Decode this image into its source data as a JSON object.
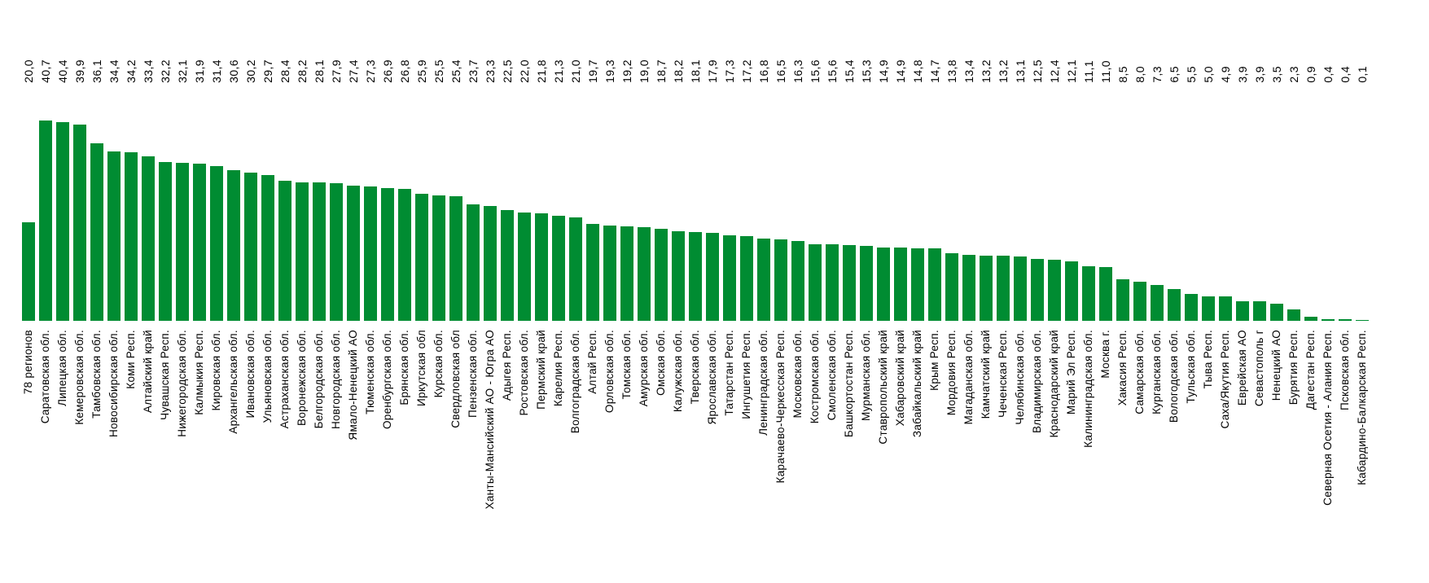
{
  "chart_data": {
    "type": "bar",
    "title": "",
    "xlabel": "",
    "ylabel": "",
    "ylim": [
      0,
      40.7
    ],
    "grid": false,
    "legend": false,
    "bar_color": "#008C32",
    "text_color": "#000000",
    "background_color": "#FFFFFF",
    "value_label_position": "top-row-rotated-90",
    "category_label_rotation": 90,
    "categories": [
      "78 регионов",
      "Саратовская обл.",
      "Липецкая обл.",
      "Кемеровская обл.",
      "Тамбовская обл.",
      "Новосибирская обл.",
      "Коми Респ.",
      "Алтайский край",
      "Чувашская Респ.",
      "Нижегородская обл.",
      "Калмыкия Респ.",
      "Кировская обл.",
      "Архангельская обл.",
      "Ивановская обл.",
      "Ульяновская обл.",
      "Астраханская обл.",
      "Воронежская обл.",
      "Белгородская обл.",
      "Новгородская обл.",
      "Ямало-Ненецкий АО",
      "Тюменская обл.",
      "Оренбургская обл.",
      "Брянская обл.",
      "Иркутская обл",
      "Курская обл.",
      "Свердловская обл",
      "Пензенская обл.",
      "Ханты-Мансийский АО - Югра АО",
      "Адыгея Респ.",
      "Ростовская обл.",
      "Пермский край",
      "Карелия Респ.",
      "Волгоградская обл.",
      "Алтай Респ.",
      "Орловская обл.",
      "Томская обл.",
      "Амурская обл.",
      "Омская обл.",
      "Калужская обл.",
      "Тверская обл.",
      "Ярославская обл.",
      "Татарстан Респ.",
      "Ингушетия Респ.",
      "Ленинградская обл.",
      "Карачаево-Черкесская Респ.",
      "Московская обл.",
      "Костромская обл.",
      "Смоленская обл.",
      "Башкортостан Респ.",
      "Мурманская обл.",
      "Ставропольский край",
      "Хабаровский край",
      "Забайкальский край",
      "Крым Респ.",
      "Мордовия Респ.",
      "Магаданская обл.",
      "Камчатский край",
      "Чеченская Респ.",
      "Челябинская обл.",
      "Владимирская обл.",
      "Краснодарский край",
      "Марий Эл Респ.",
      "Калининградская обл.",
      "Москва г.",
      "Хакасия Респ.",
      "Самарская обл.",
      "Курганская обл.",
      "Вологодская обл.",
      "Тульская обл.",
      "Тыва Респ.",
      "Саха/Якутия Респ.",
      "Еврейская АО",
      "Севастополь г",
      "Ненецкий АО",
      "Бурятия Респ.",
      "Дагестан Респ.",
      "Северная Осетия - Алания Респ.",
      "Псковская обл.",
      "Кабардино-Балкарская Респ."
    ],
    "values": [
      20.0,
      40.7,
      40.4,
      39.9,
      36.1,
      34.4,
      34.2,
      33.4,
      32.2,
      32.1,
      31.9,
      31.4,
      30.6,
      30.2,
      29.7,
      28.4,
      28.2,
      28.1,
      27.9,
      27.4,
      27.3,
      26.9,
      26.8,
      25.9,
      25.5,
      25.4,
      23.7,
      23.3,
      22.5,
      22.0,
      21.8,
      21.3,
      21.0,
      19.7,
      19.3,
      19.2,
      19.0,
      18.7,
      18.2,
      18.1,
      17.9,
      17.3,
      17.2,
      16.8,
      16.5,
      16.3,
      15.6,
      15.6,
      15.4,
      15.3,
      14.9,
      14.9,
      14.8,
      14.7,
      13.8,
      13.4,
      13.2,
      13.2,
      13.1,
      12.5,
      12.4,
      12.1,
      11.1,
      11.0,
      8.5,
      8.0,
      7.3,
      6.5,
      5.5,
      5.0,
      4.9,
      3.9,
      3.9,
      3.5,
      2.3,
      0.9,
      0.4,
      0.4,
      0.1
    ],
    "value_labels": [
      "20,0",
      "40,7",
      "40,4",
      "39,9",
      "36,1",
      "34,4",
      "34,2",
      "33,4",
      "32,2",
      "32,1",
      "31,9",
      "31,4",
      "30,6",
      "30,2",
      "29,7",
      "28,4",
      "28,2",
      "28,1",
      "27,9",
      "27,4",
      "27,3",
      "26,9",
      "26,8",
      "25,9",
      "25,5",
      "25,4",
      "23,7",
      "23,3",
      "22,5",
      "22,0",
      "21,8",
      "21,3",
      "21,0",
      "19,7",
      "19,3",
      "19,2",
      "19,0",
      "18,7",
      "18,2",
      "18,1",
      "17,9",
      "17,3",
      "17,2",
      "16,8",
      "16,5",
      "16,3",
      "15,6",
      "15,6",
      "15,4",
      "15,3",
      "14,9",
      "14,9",
      "14,8",
      "14,7",
      "13,8",
      "13,4",
      "13,2",
      "13,2",
      "13,1",
      "12,5",
      "12,4",
      "12,1",
      "11,1",
      "11,0",
      "8,5",
      "8,0",
      "7,3",
      "6,5",
      "5,5",
      "5,0",
      "4,9",
      "3,9",
      "3,9",
      "3,5",
      "2,3",
      "0,9",
      "0,4",
      "0,4",
      "0,1"
    ]
  }
}
